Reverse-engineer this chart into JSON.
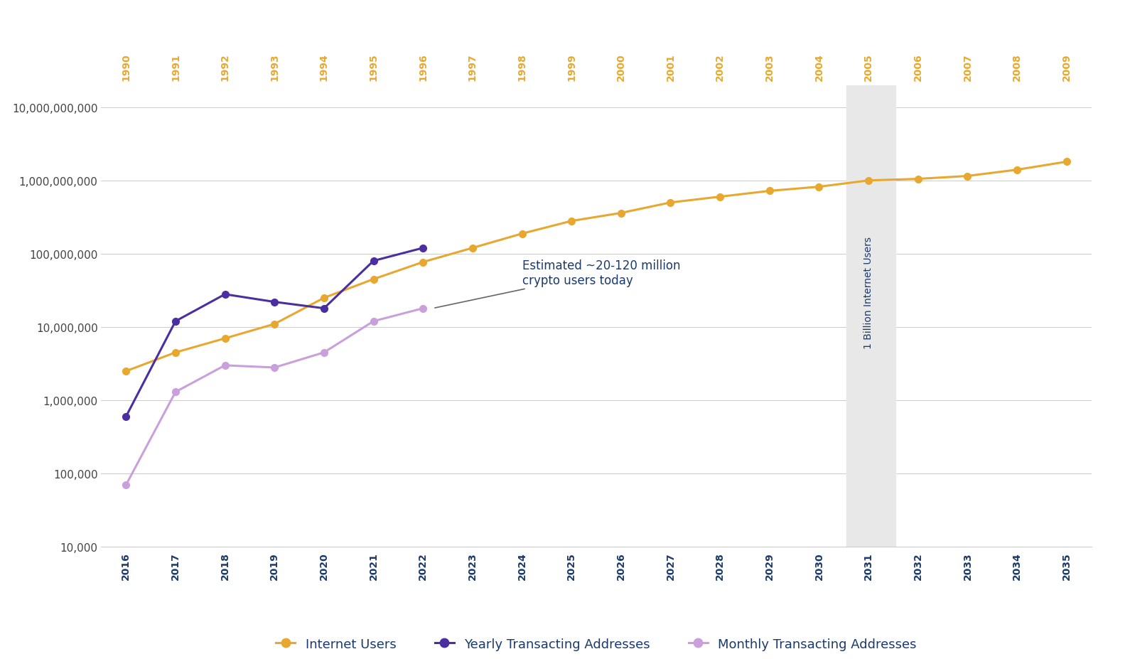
{
  "internet_users_years_top": [
    1990,
    1991,
    1992,
    1993,
    1994,
    1995,
    1996,
    1997,
    1998,
    1999,
    2000,
    2001,
    2002,
    2003,
    2004,
    2005,
    2006,
    2007,
    2008,
    2009
  ],
  "crypto_years_bottom": [
    2016,
    2017,
    2018,
    2019,
    2020,
    2021,
    2022,
    2023,
    2024,
    2025,
    2026,
    2027,
    2028,
    2029,
    2030,
    2031,
    2032,
    2033,
    2034,
    2035
  ],
  "internet_users_values": [
    2500000,
    4500000,
    7000000,
    11000000,
    25000000,
    45000000,
    77000000,
    120000000,
    188000000,
    280000000,
    360000000,
    500000000,
    600000000,
    720000000,
    820000000,
    1000000000,
    1050000000,
    1150000000,
    1400000000,
    1800000000
  ],
  "yearly_transacting_values": [
    600000,
    12000000,
    28000000,
    22000000,
    18000000,
    80000000,
    120000000,
    null,
    null,
    null,
    null,
    null,
    null,
    null,
    null,
    null,
    null,
    null,
    null,
    null
  ],
  "monthly_transacting_values": [
    70000,
    1300000,
    3000000,
    2800000,
    4500000,
    12000000,
    18000000,
    null,
    null,
    null,
    null,
    null,
    null,
    null,
    null,
    null,
    null,
    null,
    null,
    null
  ],
  "internet_color": "#E8A830",
  "yearly_color": "#4B2EA0",
  "monthly_color": "#C9A0DC",
  "background_color": "#FFFFFF",
  "shaded_region_color": "#E8E8E8",
  "billion_label": "1 Billion Internet Users",
  "ylim": [
    10000,
    20000000000
  ],
  "yticks": [
    10000,
    100000,
    1000000,
    10000000,
    100000000,
    1000000000,
    10000000000
  ],
  "ytick_labels": [
    "10,000",
    "100,000",
    "1,000,000",
    "10,000,000",
    "100,000,000",
    "1,000,000,000",
    "10,000,000,000"
  ],
  "legend_items": [
    "Internet Users",
    "Yearly Transacting Addresses",
    "Monthly Transacting Addresses"
  ],
  "top_axis_color": "#E8A830",
  "bottom_axis_color": "#1B3A6B",
  "grid_color": "#CCCCCC",
  "marker_size": 7,
  "line_width": 2.2,
  "annotation_text": "Estimated ~20-120 million\ncrypto users today"
}
